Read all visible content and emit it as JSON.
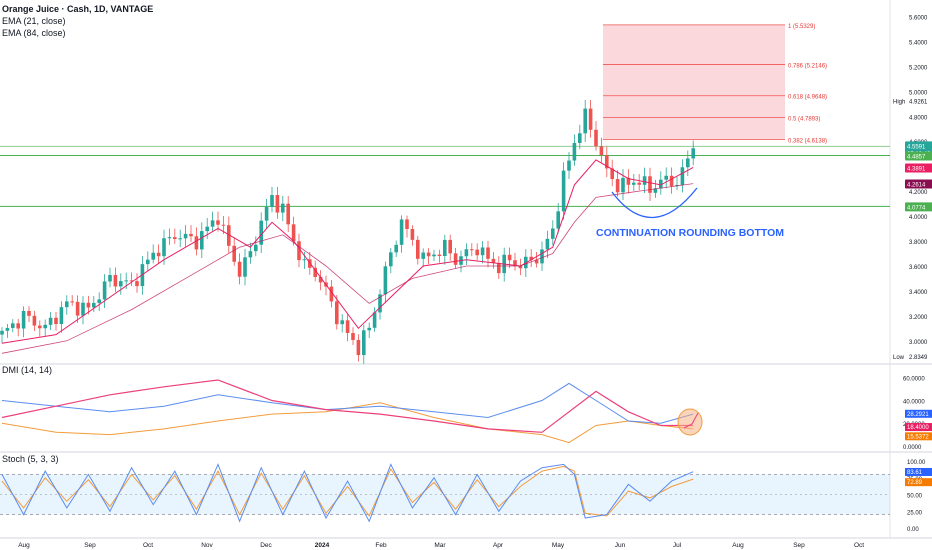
{
  "header": {
    "title": "Orange Juice · Cash, 1D, VANTAGE",
    "ema21": "EMA (21, close)",
    "ema84": "EMA (84, close)"
  },
  "colors": {
    "up": "#26a69a",
    "down": "#ef5350",
    "ema21": "#e91e63",
    "ema84": "#c2185b",
    "fib": "#f7a8b0",
    "fibLine": "#ef5350",
    "level": "#4caf50",
    "level2": "#81c784",
    "curve": "#2962ff",
    "annotation": "#2962ff",
    "dmiPlus": "#5b8def",
    "dmiMinus": "#f39c3c",
    "adx": "#ec407a",
    "stochK": "#5b8def",
    "stochD": "#f39c3c",
    "ellipse": "#f5b183"
  },
  "annotation": "CONTINUATION ROUNDING BOTTOM",
  "price_axis": {
    "ticks": [
      "5.6000",
      "5.4000",
      "5.2000",
      "5.0000",
      "4.8000",
      "4.6000",
      "4.4000",
      "4.2000",
      "4.0000",
      "3.8000",
      "3.6000",
      "3.4000",
      "3.2000",
      "3.0000"
    ],
    "high_label": "High",
    "high_value": "4.9261",
    "low_label": "Low",
    "low_value": "2.8349",
    "last_price": "4.5591",
    "countdown": "05:10:42",
    "level_1": "4.4857",
    "ema21_value": "4.3891",
    "ema84_value": "4.2614",
    "level_2": "4.0774"
  },
  "fib_labels": [
    "1 (5.5329)",
    "0.786 (5.2146)",
    "0.618 (4.9648)",
    "0.5 (4.7893)",
    "0.382 (4.6138)"
  ],
  "dmi": {
    "title": "DMI (14, 14)",
    "ticks": [
      "60.0000",
      "40.0000",
      "20.0000",
      "0.0000"
    ],
    "value_plus": "28.2921",
    "value_adx": "18.4000",
    "value_minus": "15.5372"
  },
  "stoch": {
    "title": "Stoch (5, 3, 3)",
    "ticks": [
      "100.00",
      "75.00",
      "50.00",
      "25.00",
      "0.00"
    ],
    "value_k": "83.61",
    "value_d": "72.89"
  },
  "time_axis": [
    "Aug",
    "Sep",
    "Oct",
    "Nov",
    "Dec",
    "2024",
    "Feb",
    "Mar",
    "Apr",
    "May",
    "Jun",
    "Jul",
    "Aug",
    "Sep",
    "Oct"
  ],
  "chart_data": {
    "type": "candlestick",
    "symbol": "Orange Juice · Cash, 1D, VANTAGE",
    "x_range": [
      "2023-07",
      "2024-10"
    ],
    "y_range": [
      2.83,
      5.62
    ],
    "price_path": [
      [
        0,
        3.05
      ],
      [
        4,
        3.2
      ],
      [
        8,
        3.1
      ],
      [
        12,
        3.3
      ],
      [
        16,
        3.25
      ],
      [
        20,
        3.5
      ],
      [
        24,
        3.45
      ],
      [
        28,
        3.7
      ],
      [
        32,
        3.85
      ],
      [
        36,
        3.8
      ],
      [
        40,
        4.0
      ],
      [
        42,
        3.75
      ],
      [
        44,
        3.55
      ],
      [
        46,
        3.7
      ],
      [
        48,
        3.95
      ],
      [
        50,
        4.15
      ],
      [
        52,
        4.05
      ],
      [
        54,
        3.8
      ],
      [
        56,
        3.6
      ],
      [
        58,
        3.55
      ],
      [
        60,
        3.4
      ],
      [
        62,
        3.2
      ],
      [
        64,
        3.05
      ],
      [
        66,
        2.95
      ],
      [
        68,
        3.1
      ],
      [
        70,
        3.4
      ],
      [
        72,
        3.7
      ],
      [
        74,
        3.95
      ],
      [
        76,
        3.8
      ],
      [
        78,
        3.65
      ],
      [
        80,
        3.7
      ],
      [
        82,
        3.75
      ],
      [
        84,
        3.65
      ],
      [
        86,
        3.7
      ],
      [
        88,
        3.75
      ],
      [
        90,
        3.65
      ],
      [
        92,
        3.6
      ],
      [
        94,
        3.65
      ],
      [
        96,
        3.6
      ],
      [
        98,
        3.65
      ],
      [
        100,
        3.7
      ],
      [
        102,
        3.9
      ],
      [
        104,
        4.3
      ],
      [
        106,
        4.6
      ],
      [
        108,
        4.8
      ],
      [
        110,
        4.6
      ],
      [
        112,
        4.35
      ],
      [
        114,
        4.25
      ],
      [
        116,
        4.25
      ],
      [
        118,
        4.3
      ],
      [
        120,
        4.2
      ],
      [
        122,
        4.3
      ],
      [
        124,
        4.25
      ],
      [
        126,
        4.35
      ],
      [
        128,
        4.55
      ]
    ],
    "ema21_path": [
      [
        0,
        2.98
      ],
      [
        10,
        3.05
      ],
      [
        20,
        3.35
      ],
      [
        30,
        3.65
      ],
      [
        40,
        3.9
      ],
      [
        46,
        3.75
      ],
      [
        50,
        3.95
      ],
      [
        54,
        3.8
      ],
      [
        60,
        3.45
      ],
      [
        66,
        3.1
      ],
      [
        72,
        3.35
      ],
      [
        78,
        3.6
      ],
      [
        86,
        3.65
      ],
      [
        96,
        3.6
      ],
      [
        102,
        3.75
      ],
      [
        106,
        4.25
      ],
      [
        110,
        4.45
      ],
      [
        116,
        4.3
      ],
      [
        122,
        4.25
      ],
      [
        128,
        4.39
      ]
    ],
    "ema84_path": [
      [
        0,
        2.9
      ],
      [
        12,
        3.0
      ],
      [
        24,
        3.25
      ],
      [
        36,
        3.55
      ],
      [
        44,
        3.75
      ],
      [
        52,
        3.85
      ],
      [
        60,
        3.6
      ],
      [
        68,
        3.3
      ],
      [
        76,
        3.5
      ],
      [
        86,
        3.6
      ],
      [
        96,
        3.6
      ],
      [
        102,
        3.7
      ],
      [
        106,
        3.95
      ],
      [
        110,
        4.15
      ],
      [
        118,
        4.2
      ],
      [
        128,
        4.26
      ]
    ],
    "fib_levels": [
      [
        1,
        5.5329
      ],
      [
        0.786,
        5.2146
      ],
      [
        0.618,
        4.9648
      ],
      [
        0.5,
        4.7893
      ],
      [
        0.382,
        4.6138
      ]
    ],
    "horizontal_levels": [
      4.5591,
      4.4857,
      4.0774
    ],
    "dmi_range": [
      0,
      65
    ],
    "dmi_plus": [
      [
        0,
        40
      ],
      [
        10,
        35
      ],
      [
        20,
        30
      ],
      [
        30,
        35
      ],
      [
        40,
        45
      ],
      [
        50,
        38
      ],
      [
        60,
        32
      ],
      [
        70,
        35
      ],
      [
        80,
        30
      ],
      [
        90,
        25
      ],
      [
        100,
        40
      ],
      [
        105,
        55
      ],
      [
        110,
        40
      ],
      [
        116,
        22
      ],
      [
        122,
        20
      ],
      [
        128,
        28
      ]
    ],
    "dmi_minus": [
      [
        0,
        20
      ],
      [
        10,
        12
      ],
      [
        20,
        10
      ],
      [
        30,
        15
      ],
      [
        40,
        22
      ],
      [
        50,
        28
      ],
      [
        60,
        30
      ],
      [
        70,
        38
      ],
      [
        80,
        25
      ],
      [
        90,
        15
      ],
      [
        100,
        10
      ],
      [
        105,
        3
      ],
      [
        110,
        18
      ],
      [
        116,
        22
      ],
      [
        122,
        18
      ],
      [
        128,
        15
      ]
    ],
    "adx": [
      [
        0,
        25
      ],
      [
        10,
        35
      ],
      [
        20,
        45
      ],
      [
        30,
        52
      ],
      [
        40,
        58
      ],
      [
        50,
        40
      ],
      [
        60,
        32
      ],
      [
        70,
        28
      ],
      [
        80,
        22
      ],
      [
        90,
        15
      ],
      [
        100,
        12
      ],
      [
        110,
        48
      ],
      [
        116,
        30
      ],
      [
        122,
        18
      ],
      [
        128,
        18
      ]
    ],
    "stoch_range": [
      0,
      100
    ],
    "stoch_k": [
      [
        0,
        80
      ],
      [
        4,
        20
      ],
      [
        8,
        85
      ],
      [
        12,
        30
      ],
      [
        16,
        80
      ],
      [
        20,
        25
      ],
      [
        24,
        90
      ],
      [
        28,
        35
      ],
      [
        32,
        85
      ],
      [
        36,
        20
      ],
      [
        40,
        95
      ],
      [
        44,
        10
      ],
      [
        48,
        90
      ],
      [
        52,
        20
      ],
      [
        56,
        85
      ],
      [
        60,
        15
      ],
      [
        64,
        70
      ],
      [
        68,
        10
      ],
      [
        72,
        95
      ],
      [
        76,
        30
      ],
      [
        80,
        75
      ],
      [
        84,
        20
      ],
      [
        88,
        80
      ],
      [
        92,
        25
      ],
      [
        96,
        70
      ],
      [
        100,
        90
      ],
      [
        104,
        95
      ],
      [
        106,
        80
      ],
      [
        108,
        15
      ],
      [
        112,
        20
      ],
      [
        116,
        65
      ],
      [
        120,
        40
      ],
      [
        124,
        70
      ],
      [
        128,
        84
      ]
    ],
    "stoch_d": [
      [
        0,
        70
      ],
      [
        4,
        30
      ],
      [
        8,
        75
      ],
      [
        12,
        40
      ],
      [
        16,
        72
      ],
      [
        20,
        32
      ],
      [
        24,
        80
      ],
      [
        28,
        42
      ],
      [
        32,
        78
      ],
      [
        36,
        28
      ],
      [
        40,
        85
      ],
      [
        44,
        20
      ],
      [
        48,
        82
      ],
      [
        52,
        28
      ],
      [
        56,
        78
      ],
      [
        60,
        22
      ],
      [
        64,
        62
      ],
      [
        68,
        18
      ],
      [
        72,
        88
      ],
      [
        76,
        38
      ],
      [
        80,
        68
      ],
      [
        84,
        28
      ],
      [
        88,
        72
      ],
      [
        92,
        32
      ],
      [
        96,
        62
      ],
      [
        100,
        85
      ],
      [
        104,
        92
      ],
      [
        106,
        85
      ],
      [
        108,
        22
      ],
      [
        112,
        18
      ],
      [
        116,
        55
      ],
      [
        120,
        45
      ],
      [
        124,
        62
      ],
      [
        128,
        73
      ]
    ]
  }
}
